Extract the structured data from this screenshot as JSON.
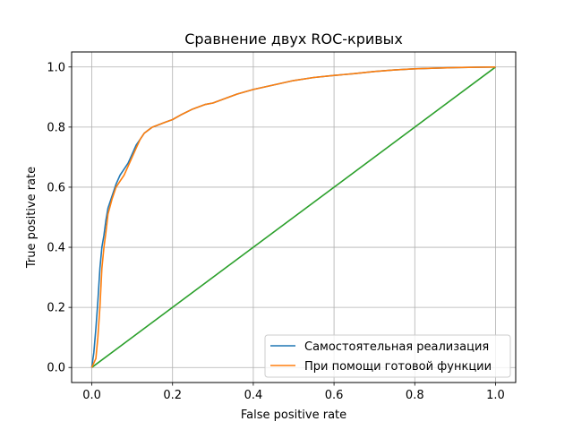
{
  "chart_data": {
    "type": "line",
    "title": "Сравнение двух ROC-кривых",
    "xlabel": "False positive rate",
    "ylabel": "True positive rate",
    "xlim": [
      -0.05,
      1.05
    ],
    "ylim": [
      -0.05,
      1.05
    ],
    "xticks": [
      "0.0",
      "0.2",
      "0.4",
      "0.6",
      "0.8",
      "1.0"
    ],
    "yticks": [
      "0.0",
      "0.2",
      "0.4",
      "0.6",
      "0.8",
      "1.0"
    ],
    "grid": true,
    "legend_position": "lower-right",
    "series": [
      {
        "name": "Самостоятельная реализация",
        "color": "#1f77b4",
        "in_legend": true,
        "x": [
          0.0,
          0.005,
          0.01,
          0.015,
          0.02,
          0.025,
          0.03,
          0.035,
          0.04,
          0.05,
          0.06,
          0.07,
          0.08,
          0.09,
          0.1,
          0.11,
          0.12,
          0.13,
          0.14,
          0.15,
          0.16,
          0.18,
          0.2,
          0.22,
          0.25,
          0.28,
          0.3,
          0.33,
          0.36,
          0.4,
          0.45,
          0.5,
          0.55,
          0.6,
          0.65,
          0.7,
          0.75,
          0.8,
          0.85,
          0.9,
          0.95,
          1.0
        ],
        "y": [
          0.0,
          0.05,
          0.13,
          0.22,
          0.33,
          0.4,
          0.44,
          0.49,
          0.53,
          0.57,
          0.61,
          0.64,
          0.66,
          0.68,
          0.71,
          0.74,
          0.76,
          0.78,
          0.79,
          0.8,
          0.805,
          0.815,
          0.825,
          0.84,
          0.86,
          0.875,
          0.88,
          0.895,
          0.91,
          0.925,
          0.94,
          0.955,
          0.965,
          0.972,
          0.978,
          0.985,
          0.99,
          0.994,
          0.996,
          0.998,
          0.999,
          1.0
        ]
      },
      {
        "name": "При помощи готовой функции",
        "color": "#ff7f0e",
        "in_legend": true,
        "x": [
          0.0,
          0.01,
          0.015,
          0.02,
          0.025,
          0.03,
          0.035,
          0.04,
          0.05,
          0.06,
          0.07,
          0.08,
          0.09,
          0.1,
          0.11,
          0.12,
          0.13,
          0.14,
          0.15,
          0.16,
          0.18,
          0.2,
          0.22,
          0.25,
          0.28,
          0.3,
          0.33,
          0.36,
          0.4,
          0.45,
          0.5,
          0.55,
          0.6,
          0.65,
          0.7,
          0.75,
          0.8,
          0.85,
          0.9,
          0.95,
          1.0
        ],
        "y": [
          0.0,
          0.03,
          0.1,
          0.2,
          0.33,
          0.4,
          0.45,
          0.51,
          0.56,
          0.6,
          0.62,
          0.64,
          0.67,
          0.7,
          0.73,
          0.76,
          0.78,
          0.79,
          0.8,
          0.805,
          0.815,
          0.825,
          0.84,
          0.86,
          0.875,
          0.88,
          0.895,
          0.91,
          0.925,
          0.94,
          0.955,
          0.965,
          0.972,
          0.978,
          0.985,
          0.99,
          0.994,
          0.996,
          0.998,
          0.999,
          1.0
        ]
      },
      {
        "name": "",
        "color": "#2ca02c",
        "in_legend": false,
        "x": [
          0.0,
          1.0
        ],
        "y": [
          0.0,
          1.0
        ]
      }
    ]
  }
}
